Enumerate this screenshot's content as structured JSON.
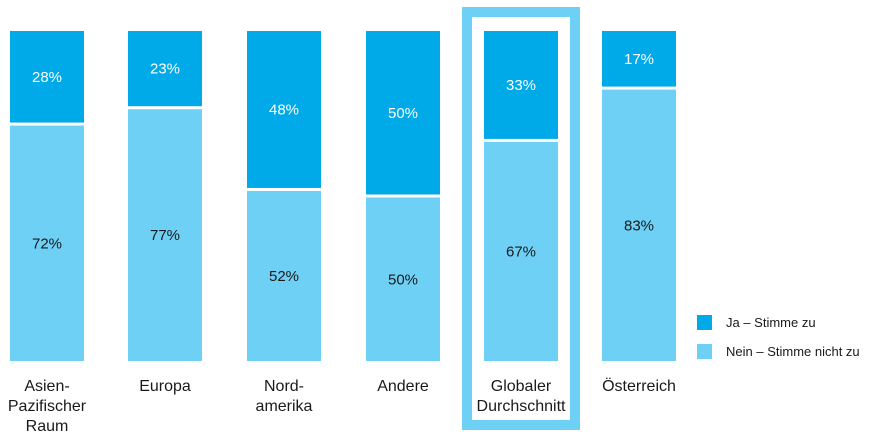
{
  "chart_data": {
    "type": "bar",
    "stacked": true,
    "percent": true,
    "categories": [
      [
        "Asien-",
        "Pazifischer",
        "Raum"
      ],
      [
        "Europa"
      ],
      [
        "Nord-",
        "amerika"
      ],
      [
        "Andere"
      ],
      [
        "Globaler",
        "Durchschnitt"
      ],
      [
        "Österreich"
      ]
    ],
    "series": [
      {
        "name": "Ja – Stimme zu",
        "values": [
          28,
          23,
          48,
          50,
          33,
          17
        ],
        "labels": [
          "28%",
          "23%",
          "48%",
          "50%",
          "33%",
          "17%"
        ],
        "color": "#00a9e8"
      },
      {
        "name": "Nein – Stimme nicht zu",
        "values": [
          72,
          77,
          52,
          50,
          67,
          83
        ],
        "labels": [
          "72%",
          "77%",
          "52%",
          "50%",
          "67%",
          "83%"
        ],
        "color": "#6ed0f5"
      }
    ],
    "ylim": [
      0,
      100
    ],
    "highlighted_category": "Globaler Durchschnitt",
    "highlight_color": "#6ed0f5",
    "grid": false,
    "legend_position": "bottom-right"
  }
}
